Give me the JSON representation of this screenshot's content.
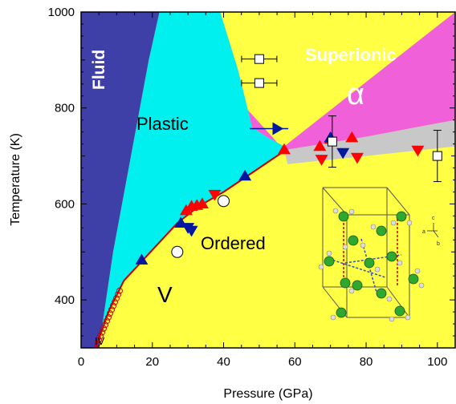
{
  "chart_data": {
    "type": "scatter",
    "xlabel": "Pressure (GPa)",
    "ylabel": "Temperature (K)",
    "xlim": [
      0,
      105
    ],
    "ylim": [
      300,
      1000
    ],
    "grid": false,
    "xticks": [
      0,
      20,
      40,
      60,
      80,
      100
    ],
    "yticks": [
      400,
      600,
      800,
      1000
    ],
    "region_labels": {
      "fluid": "Fluid",
      "plastic": "Plastic",
      "superionic": "Superionic",
      "alpha": "α",
      "ordered": "Ordered",
      "v": "V",
      "iv": "IV"
    },
    "colors": {
      "fluid": "#3f3fa8",
      "plastic": "#00f0f0",
      "superionic": "#f060d8",
      "ordered": "#ffff44",
      "gray": "#c8c8c8",
      "red_markers": "#ff0000",
      "blue_markers": "#0018a0",
      "boundary": "#cc0000"
    },
    "boundaries": {
      "fluid_right": [
        [
          0,
          300
        ],
        [
          5,
          300
        ],
        [
          9,
          500
        ],
        [
          14,
          700
        ],
        [
          19,
          900
        ],
        [
          22,
          1000
        ],
        [
          0,
          1000
        ]
      ],
      "plastic_top_right": [
        [
          22,
          1000
        ],
        [
          39,
          1000
        ],
        [
          44,
          880
        ],
        [
          48,
          760
        ],
        [
          52,
          740
        ],
        [
          57,
          720
        ]
      ],
      "melting_like_curve": [
        [
          4,
          300
        ],
        [
          8,
          380
        ],
        [
          12,
          440
        ],
        [
          17,
          480
        ],
        [
          22,
          520
        ],
        [
          27,
          560
        ],
        [
          33,
          595
        ],
        [
          40,
          625
        ],
        [
          46,
          655
        ],
        [
          52,
          685
        ],
        [
          57,
          710
        ]
      ],
      "ordered_top": [
        [
          57,
          710
        ],
        [
          58,
          683
        ],
        [
          80,
          700
        ],
        [
          105,
          720
        ]
      ],
      "gray_band": [
        [
          57,
          712
        ],
        [
          80,
          740
        ],
        [
          105,
          775
        ],
        [
          105,
          720
        ],
        [
          80,
          700
        ],
        [
          58,
          683
        ]
      ]
    },
    "series": [
      {
        "name": "",
        "marker": "triangle-up",
        "color": "#ff0000",
        "points": [
          [
            29.5,
            586
          ],
          [
            31,
            595
          ],
          [
            32.5,
            597
          ],
          [
            34,
            600
          ],
          [
            57,
            713
          ],
          [
            67,
            720
          ],
          [
            70,
            735
          ],
          [
            76,
            738
          ]
        ]
      },
      {
        "name": "",
        "marker": "triangle-down",
        "color": "#ff0000",
        "points": [
          [
            37.5,
            620
          ],
          [
            67.5,
            693
          ],
          [
            77.5,
            697
          ],
          [
            94.5,
            712
          ]
        ]
      },
      {
        "name": "",
        "marker": "triangle-up",
        "color": "#0018a0",
        "points": [
          [
            17,
            483
          ],
          [
            28,
            560
          ],
          [
            46,
            658
          ],
          [
            70,
            738
          ]
        ]
      },
      {
        "name": "",
        "marker": "triangle-down",
        "color": "#0018a0",
        "points": [
          [
            30,
            551
          ],
          [
            31,
            545
          ],
          [
            73.5,
            707
          ]
        ]
      },
      {
        "name": "",
        "marker": "triangle-right",
        "color": "#0018a0",
        "points": [
          [
            55,
            757
          ]
        ]
      },
      {
        "name": "",
        "marker": "circle-open",
        "color": "#ffffff",
        "points": [
          [
            27,
            500
          ],
          [
            40,
            606
          ]
        ]
      },
      {
        "name": "",
        "marker": "square-open",
        "color": "#ffffff",
        "points": [
          [
            50,
            902
          ],
          [
            50,
            852
          ],
          [
            70.5,
            730
          ],
          [
            100,
            700
          ]
        ]
      }
    ]
  }
}
